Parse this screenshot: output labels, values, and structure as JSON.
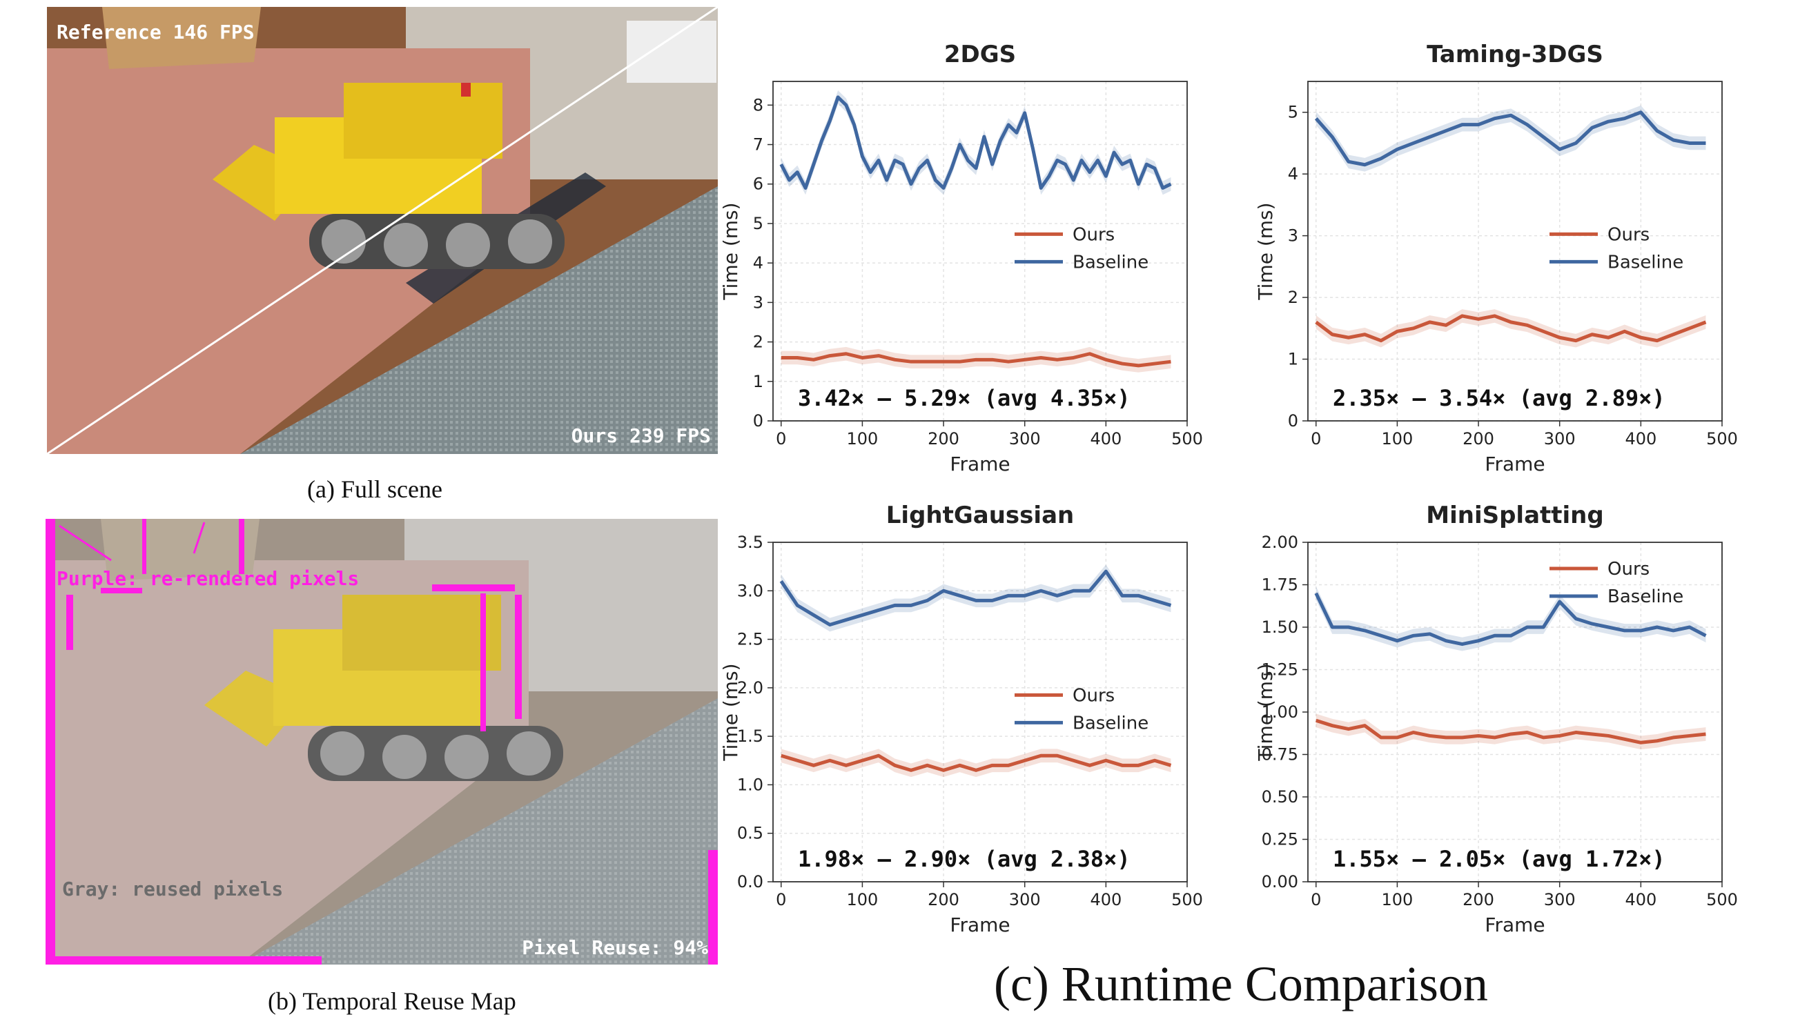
{
  "panel_a": {
    "caption": "(a) Full scene",
    "label_top": "Reference 146 FPS",
    "label_bottom": "Ours 239 FPS"
  },
  "panel_b": {
    "caption": "(b) Temporal Reuse Map",
    "label_purple": "Purple: re-rendered pixels",
    "label_gray": "Gray: reused pixels",
    "label_reuse": "Pixel Reuse: 94%",
    "colors": {
      "purple": "#ff1fe4",
      "gray": "#6b6b6b"
    }
  },
  "panel_c": {
    "caption": "(c) Runtime Comparison"
  },
  "colors": {
    "ours": "#c9573a",
    "baseline": "#3f67a0"
  },
  "chart_data": [
    {
      "type": "line",
      "title": "2DGS",
      "xlabel": "Frame",
      "ylabel": "Time (ms)",
      "xlim": [
        -10,
        500
      ],
      "ylim": [
        0,
        8.6
      ],
      "xticks": [
        0,
        100,
        200,
        300,
        400,
        500
      ],
      "yticks": [
        0,
        1,
        2,
        3,
        4,
        5,
        6,
        7,
        8
      ],
      "ytick_labels": [
        "0",
        "1",
        "2",
        "3",
        "4",
        "5",
        "6",
        "7",
        "8"
      ],
      "legend": "center-right",
      "annotation": "3.42× — 5.29× (avg 4.35×)",
      "series": [
        {
          "name": "Ours",
          "x": [
            0,
            20,
            40,
            60,
            80,
            100,
            120,
            140,
            160,
            180,
            200,
            220,
            240,
            260,
            280,
            300,
            320,
            340,
            360,
            380,
            400,
            420,
            440,
            460,
            480
          ],
          "values": [
            1.6,
            1.6,
            1.55,
            1.65,
            1.7,
            1.6,
            1.65,
            1.55,
            1.5,
            1.5,
            1.5,
            1.5,
            1.55,
            1.55,
            1.5,
            1.55,
            1.6,
            1.55,
            1.6,
            1.7,
            1.55,
            1.45,
            1.4,
            1.45,
            1.5
          ]
        },
        {
          "name": "Baseline",
          "x": [
            0,
            10,
            20,
            30,
            40,
            50,
            60,
            70,
            80,
            90,
            100,
            110,
            120,
            130,
            140,
            150,
            160,
            170,
            180,
            190,
            200,
            210,
            220,
            230,
            240,
            250,
            260,
            270,
            280,
            290,
            300,
            310,
            320,
            330,
            340,
            350,
            360,
            370,
            380,
            390,
            400,
            410,
            420,
            430,
            440,
            450,
            460,
            470,
            480
          ],
          "values": [
            6.5,
            6.1,
            6.3,
            5.9,
            6.5,
            7.1,
            7.6,
            8.2,
            8.0,
            7.5,
            6.7,
            6.3,
            6.6,
            6.1,
            6.6,
            6.5,
            6.0,
            6.4,
            6.6,
            6.1,
            5.9,
            6.4,
            7.0,
            6.6,
            6.4,
            7.2,
            6.5,
            7.1,
            7.5,
            7.3,
            7.8,
            6.9,
            5.9,
            6.2,
            6.6,
            6.5,
            6.1,
            6.6,
            6.3,
            6.6,
            6.2,
            6.8,
            6.5,
            6.6,
            6.0,
            6.5,
            6.4,
            5.9,
            6.0
          ]
        }
      ]
    },
    {
      "type": "line",
      "title": "Taming-3DGS",
      "xlabel": "Frame",
      "ylabel": "Time (ms)",
      "xlim": [
        -10,
        500
      ],
      "ylim": [
        0,
        5.5
      ],
      "xticks": [
        0,
        100,
        200,
        300,
        400,
        500
      ],
      "yticks": [
        0,
        1,
        2,
        3,
        4,
        5
      ],
      "ytick_labels": [
        "0",
        "1",
        "2",
        "3",
        "4",
        "5"
      ],
      "legend": "center-right",
      "annotation": "2.35× — 3.54× (avg 2.89×)",
      "series": [
        {
          "name": "Ours",
          "x": [
            0,
            20,
            40,
            60,
            80,
            100,
            120,
            140,
            160,
            180,
            200,
            220,
            240,
            260,
            280,
            300,
            320,
            340,
            360,
            380,
            400,
            420,
            440,
            460,
            480
          ],
          "values": [
            1.6,
            1.4,
            1.35,
            1.4,
            1.3,
            1.45,
            1.5,
            1.6,
            1.55,
            1.7,
            1.65,
            1.7,
            1.6,
            1.55,
            1.45,
            1.35,
            1.3,
            1.4,
            1.35,
            1.45,
            1.35,
            1.3,
            1.4,
            1.5,
            1.6
          ]
        },
        {
          "name": "Baseline",
          "x": [
            0,
            20,
            40,
            60,
            80,
            100,
            120,
            140,
            160,
            180,
            200,
            220,
            240,
            260,
            280,
            300,
            320,
            340,
            360,
            380,
            400,
            420,
            440,
            460,
            480
          ],
          "values": [
            4.9,
            4.6,
            4.2,
            4.15,
            4.25,
            4.4,
            4.5,
            4.6,
            4.7,
            4.8,
            4.8,
            4.9,
            4.95,
            4.8,
            4.6,
            4.4,
            4.5,
            4.75,
            4.85,
            4.9,
            5.0,
            4.7,
            4.55,
            4.5,
            4.5
          ]
        }
      ]
    },
    {
      "type": "line",
      "title": "LightGaussian",
      "xlabel": "Frame",
      "ylabel": "Time (ms)",
      "xlim": [
        -10,
        500
      ],
      "ylim": [
        0,
        3.5
      ],
      "xticks": [
        0,
        100,
        200,
        300,
        400,
        500
      ],
      "yticks": [
        0,
        0.5,
        1.0,
        1.5,
        2.0,
        2.5,
        3.0,
        3.5
      ],
      "ytick_labels": [
        "0.0",
        "0.5",
        "1.0",
        "1.5",
        "2.0",
        "2.5",
        "3.0",
        "3.5"
      ],
      "legend": "center-right",
      "annotation": "1.98× — 2.90× (avg 2.38×)",
      "series": [
        {
          "name": "Ours",
          "x": [
            0,
            20,
            40,
            60,
            80,
            100,
            120,
            140,
            160,
            180,
            200,
            220,
            240,
            260,
            280,
            300,
            320,
            340,
            360,
            380,
            400,
            420,
            440,
            460,
            480
          ],
          "values": [
            1.3,
            1.25,
            1.2,
            1.25,
            1.2,
            1.25,
            1.3,
            1.2,
            1.15,
            1.2,
            1.15,
            1.2,
            1.15,
            1.2,
            1.2,
            1.25,
            1.3,
            1.3,
            1.25,
            1.2,
            1.25,
            1.2,
            1.2,
            1.25,
            1.2
          ]
        },
        {
          "name": "Baseline",
          "x": [
            0,
            20,
            40,
            60,
            80,
            100,
            120,
            140,
            160,
            180,
            200,
            220,
            240,
            260,
            280,
            300,
            320,
            340,
            360,
            380,
            400,
            420,
            440,
            460,
            480
          ],
          "values": [
            3.1,
            2.85,
            2.75,
            2.65,
            2.7,
            2.75,
            2.8,
            2.85,
            2.85,
            2.9,
            3.0,
            2.95,
            2.9,
            2.9,
            2.95,
            2.95,
            3.0,
            2.95,
            3.0,
            3.0,
            3.2,
            2.95,
            2.95,
            2.9,
            2.85
          ]
        }
      ]
    },
    {
      "type": "line",
      "title": "MiniSplatting",
      "xlabel": "Frame",
      "ylabel": "Time (ms)",
      "xlim": [
        -10,
        500
      ],
      "ylim": [
        0,
        2.0
      ],
      "xticks": [
        0,
        100,
        200,
        300,
        400,
        500
      ],
      "yticks": [
        0,
        0.25,
        0.5,
        0.75,
        1.0,
        1.25,
        1.5,
        1.75,
        2.0
      ],
      "ytick_labels": [
        "0.00",
        "0.25",
        "0.50",
        "0.75",
        "1.00",
        "1.25",
        "1.50",
        "1.75",
        "2.00"
      ],
      "legend": "top-right",
      "annotation": "1.55× — 2.05× (avg 1.72×)",
      "series": [
        {
          "name": "Ours",
          "x": [
            0,
            20,
            40,
            60,
            80,
            100,
            120,
            140,
            160,
            180,
            200,
            220,
            240,
            260,
            280,
            300,
            320,
            340,
            360,
            380,
            400,
            420,
            440,
            460,
            480
          ],
          "values": [
            0.95,
            0.92,
            0.9,
            0.92,
            0.85,
            0.85,
            0.88,
            0.86,
            0.85,
            0.85,
            0.86,
            0.85,
            0.87,
            0.88,
            0.85,
            0.86,
            0.88,
            0.87,
            0.86,
            0.84,
            0.82,
            0.83,
            0.85,
            0.86,
            0.87
          ]
        },
        {
          "name": "Baseline",
          "x": [
            0,
            20,
            40,
            60,
            80,
            100,
            120,
            140,
            160,
            180,
            200,
            220,
            240,
            260,
            280,
            300,
            320,
            340,
            360,
            380,
            400,
            420,
            440,
            460,
            480
          ],
          "values": [
            1.7,
            1.5,
            1.5,
            1.48,
            1.45,
            1.42,
            1.45,
            1.46,
            1.42,
            1.4,
            1.42,
            1.45,
            1.45,
            1.5,
            1.5,
            1.65,
            1.55,
            1.52,
            1.5,
            1.48,
            1.48,
            1.5,
            1.48,
            1.5,
            1.45
          ]
        }
      ]
    }
  ]
}
